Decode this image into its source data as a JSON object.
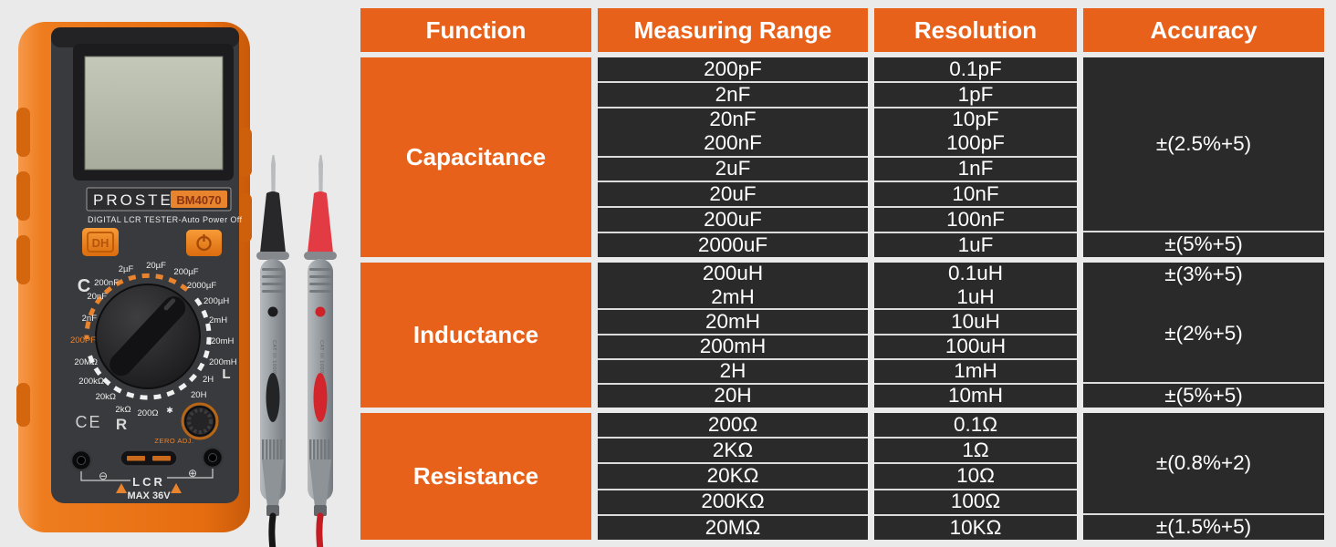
{
  "page": {
    "background": "#eaeaea"
  },
  "colors": {
    "accent_orange": "#e8611a",
    "cell_dark": "#2a2a2a",
    "divider": "#dcdcdc",
    "text_light": "#ffffff"
  },
  "device": {
    "brand": "PROSTER",
    "model": "BM4070",
    "subtitle": "DIGITAL LCR TESTER-Auto Power Off",
    "hold_button": "DH",
    "dial": {
      "group_c": "C",
      "group_l": "L",
      "group_r": "R",
      "cap_labels": [
        "2µF",
        "20µF",
        "200µF",
        "2000µF",
        "200nF",
        "20nF",
        "2nF",
        "200PF"
      ],
      "ind_labels": [
        "200µH",
        "2mH",
        "20mH",
        "200mH",
        "2H",
        "20H"
      ],
      "res_labels": [
        "20MΩ",
        "200kΩ",
        "20kΩ",
        "2kΩ",
        "200Ω"
      ],
      "star": "✱"
    },
    "zero_adj": "ZERO ADJ.",
    "ce_mark": "CE",
    "minus": "⊖",
    "plus": "⊕",
    "port": "LCR",
    "max_rating": "MAX 36V",
    "probe_marking": "CAT III 1000V 20A"
  },
  "table": {
    "headers": [
      "Function",
      "Measuring Range",
      "Resolution",
      "Accuracy"
    ],
    "sections": [
      {
        "function": "Capacitance",
        "rows": [
          {
            "range": "200pF",
            "resolution": "0.1pF",
            "divider": false
          },
          {
            "range": "2nF",
            "resolution": "1pF",
            "divider": true
          },
          {
            "range": "20nF",
            "resolution": "10pF",
            "divider": true
          },
          {
            "range": "200nF",
            "resolution": "100pF",
            "divider": false
          },
          {
            "range": "2uF",
            "resolution": "1nF",
            "divider": true
          },
          {
            "range": "20uF",
            "resolution": "10nF",
            "divider": true
          },
          {
            "range": "200uF",
            "resolution": "100nF",
            "divider": true
          },
          {
            "range": "2000uF",
            "resolution": "1uF",
            "divider": true
          }
        ],
        "accuracy": [
          {
            "label": "±(2.5%+5)",
            "span": 7,
            "divider": false
          },
          {
            "label": "±(5%+5)",
            "span": 1,
            "divider": true
          }
        ]
      },
      {
        "function": "Inductance",
        "rows": [
          {
            "range": "200uH",
            "resolution": "0.1uH",
            "divider": false
          },
          {
            "range": "2mH",
            "resolution": "1uH",
            "divider": false
          },
          {
            "range": "20mH",
            "resolution": "10uH",
            "divider": true
          },
          {
            "range": "200mH",
            "resolution": "100uH",
            "divider": true
          },
          {
            "range": "2H",
            "resolution": "1mH",
            "divider": true
          },
          {
            "range": "20H",
            "resolution": "10mH",
            "divider": true
          }
        ],
        "accuracy": [
          {
            "label": "±(3%+5)",
            "span": 1,
            "divider": false
          },
          {
            "label": "±(2%+5)",
            "span": 4,
            "divider": false
          },
          {
            "label": "±(5%+5)",
            "span": 1,
            "divider": true
          }
        ]
      },
      {
        "function": "Resistance",
        "rows": [
          {
            "range": "200Ω",
            "resolution": "0.1Ω",
            "divider": false
          },
          {
            "range": "2KΩ",
            "resolution": "1Ω",
            "divider": true
          },
          {
            "range": "20KΩ",
            "resolution": "10Ω",
            "divider": true
          },
          {
            "range": "200KΩ",
            "resolution": "100Ω",
            "divider": true
          },
          {
            "range": "20MΩ",
            "resolution": "10KΩ",
            "divider": true
          }
        ],
        "accuracy": [
          {
            "label": "±(0.8%+2)",
            "span": 4,
            "divider": false
          },
          {
            "label": "±(1.5%+5)",
            "span": 1,
            "divider": true
          }
        ]
      }
    ]
  }
}
